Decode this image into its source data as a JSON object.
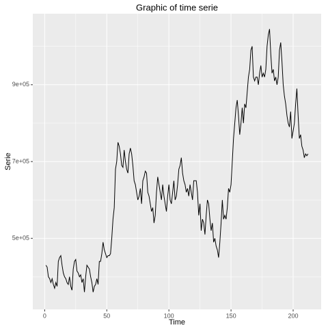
{
  "chart_data": {
    "type": "line",
    "title": "Graphic of time serie",
    "x_label": "Time",
    "y_label": "Serie",
    "color": "#000000",
    "grid": true,
    "xlim": [
      -9.55,
      222.55
    ],
    "xticks": [
      0,
      50,
      100,
      150,
      200
    ],
    "ylim": [
      315000,
      1085000
    ],
    "yticks": [
      {
        "value": 500000,
        "label": "5e+05"
      },
      {
        "value": 700000,
        "label": "7e+05"
      },
      {
        "value": 900000,
        "label": "9e+05"
      }
    ],
    "x": [
      1,
      2,
      3,
      4,
      5,
      6,
      7,
      8,
      9,
      10,
      11,
      12,
      13,
      14,
      15,
      16,
      17,
      18,
      19,
      20,
      21,
      22,
      23,
      24,
      25,
      26,
      27,
      28,
      29,
      30,
      31,
      32,
      33,
      34,
      35,
      36,
      37,
      38,
      39,
      40,
      41,
      42,
      43,
      44,
      45,
      46,
      47,
      48,
      49,
      50,
      51,
      52,
      53,
      54,
      55,
      56,
      57,
      58,
      59,
      60,
      61,
      62,
      63,
      64,
      65,
      66,
      67,
      68,
      69,
      70,
      71,
      72,
      73,
      74,
      75,
      76,
      77,
      78,
      79,
      80,
      81,
      82,
      83,
      84,
      85,
      86,
      87,
      88,
      89,
      90,
      91,
      92,
      93,
      94,
      95,
      96,
      97,
      98,
      99,
      100,
      101,
      102,
      103,
      104,
      105,
      106,
      107,
      108,
      109,
      110,
      111,
      112,
      113,
      114,
      115,
      116,
      117,
      118,
      119,
      120,
      121,
      122,
      123,
      124,
      125,
      126,
      127,
      128,
      129,
      130,
      131,
      132,
      133,
      134,
      135,
      136,
      137,
      138,
      139,
      140,
      141,
      142,
      143,
      144,
      145,
      146,
      147,
      148,
      149,
      150,
      151,
      152,
      153,
      154,
      155,
      156,
      157,
      158,
      159,
      160,
      161,
      162,
      163,
      164,
      165,
      166,
      167,
      168,
      169,
      170,
      171,
      172,
      173,
      174,
      175,
      176,
      177,
      178,
      179,
      180,
      181,
      182,
      183,
      184,
      185,
      186,
      187,
      188,
      189,
      190,
      191,
      192,
      193,
      194,
      195,
      196,
      197,
      198,
      199,
      200,
      201,
      202,
      203,
      204,
      205,
      206,
      207,
      208,
      209,
      210,
      211,
      212
    ],
    "values": [
      430000,
      425000,
      400000,
      395000,
      385000,
      395000,
      380000,
      370000,
      385000,
      375000,
      440000,
      450000,
      455000,
      430000,
      410000,
      400000,
      395000,
      385000,
      380000,
      400000,
      375000,
      365000,
      420000,
      440000,
      445000,
      415000,
      410000,
      400000,
      405000,
      385000,
      395000,
      360000,
      400000,
      430000,
      425000,
      420000,
      400000,
      385000,
      360000,
      375000,
      380000,
      395000,
      380000,
      440000,
      440000,
      460000,
      490000,
      470000,
      460000,
      450000,
      455000,
      455000,
      460000,
      500000,
      550000,
      580000,
      680000,
      700000,
      750000,
      740000,
      720000,
      690000,
      685000,
      730000,
      700000,
      680000,
      670000,
      720000,
      735000,
      720000,
      690000,
      650000,
      640000,
      620000,
      600000,
      610000,
      630000,
      590000,
      650000,
      660000,
      675000,
      670000,
      620000,
      610000,
      590000,
      570000,
      580000,
      540000,
      560000,
      620000,
      660000,
      640000,
      620000,
      600000,
      640000,
      610000,
      590000,
      570000,
      610000,
      640000,
      600000,
      590000,
      620000,
      650000,
      600000,
      610000,
      640000,
      680000,
      690000,
      710000,
      670000,
      650000,
      640000,
      620000,
      630000,
      610000,
      640000,
      620000,
      600000,
      650000,
      650000,
      650000,
      620000,
      560000,
      590000,
      520000,
      550000,
      540000,
      510000,
      560000,
      600000,
      590000,
      550000,
      520000,
      540000,
      490000,
      500000,
      480000,
      470000,
      450000,
      490000,
      540000,
      600000,
      550000,
      560000,
      550000,
      580000,
      630000,
      620000,
      640000,
      700000,
      760000,
      800000,
      840000,
      860000,
      820000,
      770000,
      800000,
      840000,
      800000,
      850000,
      840000,
      880000,
      920000,
      940000,
      990000,
      1000000,
      920000,
      910000,
      920000,
      920000,
      900000,
      930000,
      950000,
      920000,
      930000,
      920000,
      940000,
      1000000,
      1030000,
      1045000,
      980000,
      930000,
      940000,
      910000,
      920000,
      900000,
      920000,
      990000,
      1010000,
      960000,
      900000,
      870000,
      850000,
      820000,
      800000,
      790000,
      830000,
      760000,
      780000,
      800000,
      850000,
      890000,
      820000,
      760000,
      770000,
      740000,
      730000,
      710000,
      720000,
      715000,
      720000
    ]
  }
}
